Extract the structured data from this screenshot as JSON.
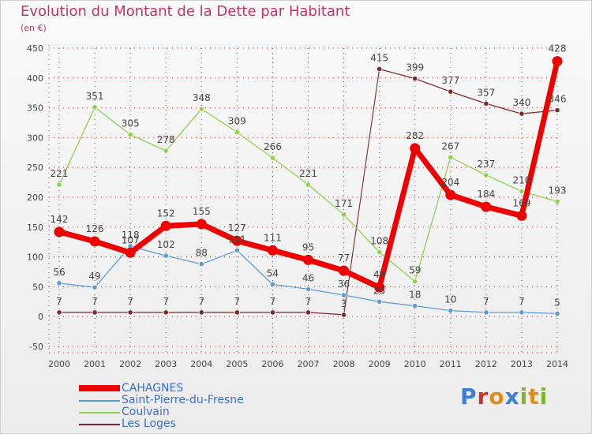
{
  "title": "Evolution du Montant de la Dette par Habitant",
  "subtitle": "(en €)",
  "brand": "Proxiti",
  "colors": {
    "title": "#c8306a",
    "grid": "#cc3333",
    "background": "#f2f2f2",
    "brand": [
      "#3a7fd5",
      "#d2322d",
      "#e68a1a",
      "#3a7fd5",
      "#7ab829",
      "#e68a1a",
      "#7ab829"
    ]
  },
  "chart_data": {
    "type": "line",
    "title": "Evolution du Montant de la Dette par Habitant",
    "ylabel": "(en €)",
    "x": [
      "2000",
      "2001",
      "2002",
      "2003",
      "2004",
      "2005",
      "2006",
      "2007",
      "2008",
      "2009",
      "2010",
      "2011",
      "2012",
      "2013",
      "2014"
    ],
    "ylim": [
      -50,
      450
    ],
    "yticks": [
      -50,
      0,
      50,
      100,
      150,
      200,
      250,
      300,
      350,
      400,
      450
    ],
    "grid": true,
    "legend_position": "bottom-left",
    "series": [
      {
        "name": "CAHAGNES",
        "color": "#ee0000",
        "values": [
          142,
          126,
          107,
          152,
          155,
          127,
          111,
          95,
          77,
          49,
          282,
          204,
          184,
          169,
          428
        ],
        "labels": [
          "142",
          "126",
          "107",
          "152",
          "155",
          "127",
          "111",
          "95",
          "77",
          "49",
          "282",
          "204",
          "184",
          "169",
          "428"
        ]
      },
      {
        "name": "Saint-Pierre-du-Fresne",
        "color": "#5b9bd5",
        "values": [
          56,
          49,
          118,
          102,
          88,
          111,
          54,
          46,
          36,
          25,
          18,
          10,
          7,
          7,
          5
        ],
        "labels": [
          "56",
          "49",
          "118",
          "102",
          "88",
          "111",
          "54",
          "46",
          "36",
          "25",
          "18",
          "10",
          "7",
          "7",
          "5"
        ]
      },
      {
        "name": "Coulvain",
        "color": "#8ed44a",
        "values": [
          221,
          351,
          305,
          278,
          348,
          309,
          266,
          221,
          171,
          108,
          59,
          267,
          237,
          210,
          193
        ],
        "labels": [
          "221",
          "351",
          "305",
          "278",
          "348",
          "309",
          "266",
          "221",
          "171",
          "108",
          "59",
          "267",
          "237",
          "210",
          "193"
        ]
      },
      {
        "name": "Les Loges",
        "color": "#7b2a2a",
        "values": [
          7,
          7,
          7,
          7,
          7,
          7,
          7,
          7,
          3,
          415,
          399,
          377,
          357,
          340,
          346
        ],
        "labels": [
          "7",
          "7",
          "7",
          "7",
          "7",
          "7",
          "7",
          "7",
          "3",
          "415",
          "399",
          "377",
          "357",
          "340",
          "346"
        ],
        "segment_gaps": [
          [
            8,
            9
          ]
        ]
      }
    ]
  }
}
